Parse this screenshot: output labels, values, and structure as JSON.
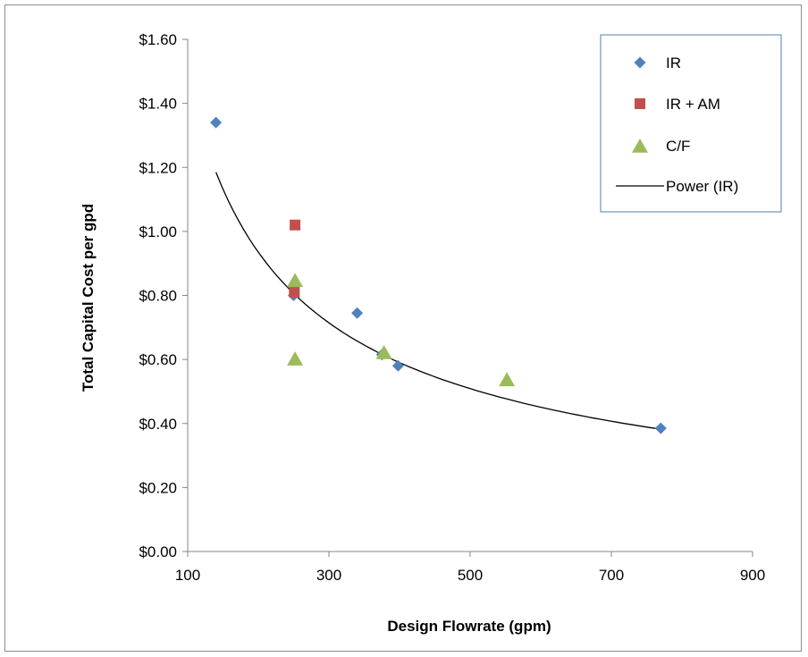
{
  "chart_data": {
    "type": "scatter",
    "xlabel": "Design Flowrate (gpm)",
    "ylabel": "Total Capital Cost per gpd",
    "xlim": [
      100,
      900
    ],
    "ylim": [
      0,
      1.6
    ],
    "x_ticks": [
      100,
      300,
      500,
      700,
      900
    ],
    "x_tick_labels": [
      "100",
      "300",
      "500",
      "700",
      "900"
    ],
    "y_ticks": [
      0,
      0.2,
      0.4,
      0.6,
      0.8,
      1.0,
      1.2,
      1.4,
      1.6
    ],
    "y_tick_labels": [
      "$0.00",
      "$0.20",
      "$0.40",
      "$0.60",
      "$0.80",
      "$1.00",
      "$1.20",
      "$1.40",
      "$1.60"
    ],
    "grid": false,
    "legend_position": "top-right",
    "series": [
      {
        "name": "IR",
        "marker": "diamond",
        "color": "#4f81bd",
        "points": [
          {
            "x": 140,
            "y": 1.34
          },
          {
            "x": 250,
            "y": 0.8
          },
          {
            "x": 340,
            "y": 0.745
          },
          {
            "x": 375,
            "y": 0.615
          },
          {
            "x": 398,
            "y": 0.58
          },
          {
            "x": 770,
            "y": 0.385
          }
        ]
      },
      {
        "name": "IR + AM",
        "marker": "square",
        "color": "#c0504d",
        "points": [
          {
            "x": 252,
            "y": 1.02
          },
          {
            "x": 251,
            "y": 0.81
          }
        ]
      },
      {
        "name": "C/F",
        "marker": "triangle",
        "color": "#9bbb59",
        "points": [
          {
            "x": 252,
            "y": 0.845
          },
          {
            "x": 252,
            "y": 0.6
          },
          {
            "x": 378,
            "y": 0.62
          },
          {
            "x": 552,
            "y": 0.535
          }
        ]
      }
    ],
    "trendline": {
      "name": "Power (IR)",
      "type": "power",
      "color": "#000000",
      "coefficient": 31.53,
      "exponent": -0.664,
      "x_range": [
        140,
        770
      ]
    }
  }
}
